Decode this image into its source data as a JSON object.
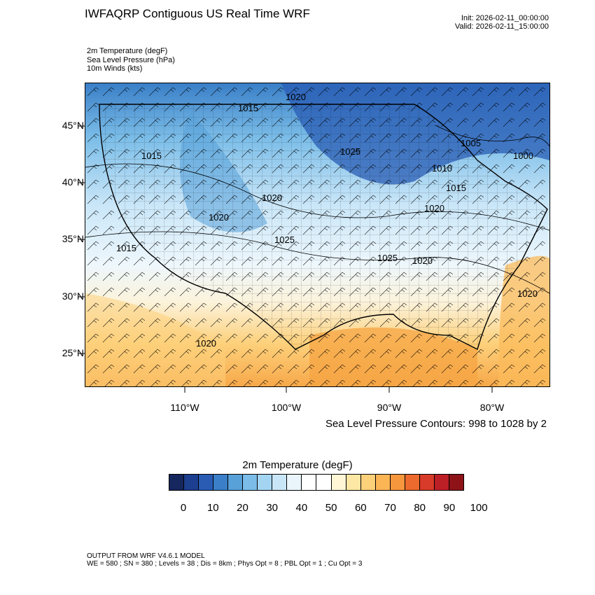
{
  "header": {
    "title": "IWFAQRP Contiguous US Real Time WRF",
    "init": "Init: 2026-02-11_00:00:00",
    "valid": "Valid: 2026-02-11_15:00:00"
  },
  "fields": [
    "2m Temperature   (degF)",
    "Sea Level Pressure   (hPa)",
    "10m Winds   (kts)"
  ],
  "map": {
    "lat_labels": [
      "45°N",
      "40°N",
      "35°N",
      "30°N",
      "25°N"
    ],
    "lon_labels": [
      "110°W",
      "100°W",
      "90°W",
      "80°W"
    ],
    "pressure_labels": [
      "1020",
      "1015",
      "1015",
      "1025",
      "1005",
      "1000",
      "1010",
      "1015",
      "1020",
      "1020",
      "1020",
      "1025",
      "1015",
      "1025",
      "1020",
      "1020",
      "1020"
    ],
    "contour_note": "Sea Level Pressure Contours: 998 to 1028 by 2"
  },
  "colorbar": {
    "title": "2m Temperature  (degF)",
    "colors": [
      "#16275e",
      "#1d3f8f",
      "#2a5cb4",
      "#3a7fc7",
      "#58a0d8",
      "#7bbde8",
      "#a3d5f3",
      "#c9e6f8",
      "#eaf5fb",
      "#ffffff",
      "#ffffff",
      "#fff6d6",
      "#fde7a4",
      "#fdd07a",
      "#fbb555",
      "#f7973d",
      "#ec6a2d",
      "#d83b29",
      "#bc1f25",
      "#8e1319"
    ],
    "ticks": [
      "0",
      "10",
      "20",
      "30",
      "40",
      "50",
      "60",
      "70",
      "80",
      "90",
      "100"
    ]
  },
  "footer": {
    "line1": "OUTPUT FROM WRF V4.6.1 MODEL",
    "line2": "WE = 580 ; SN = 380 ; Levels = 38 ; Dis = 8km ; Phys Opt = 8 ; PBL Opt = 1 ; Cu Opt = 3"
  }
}
